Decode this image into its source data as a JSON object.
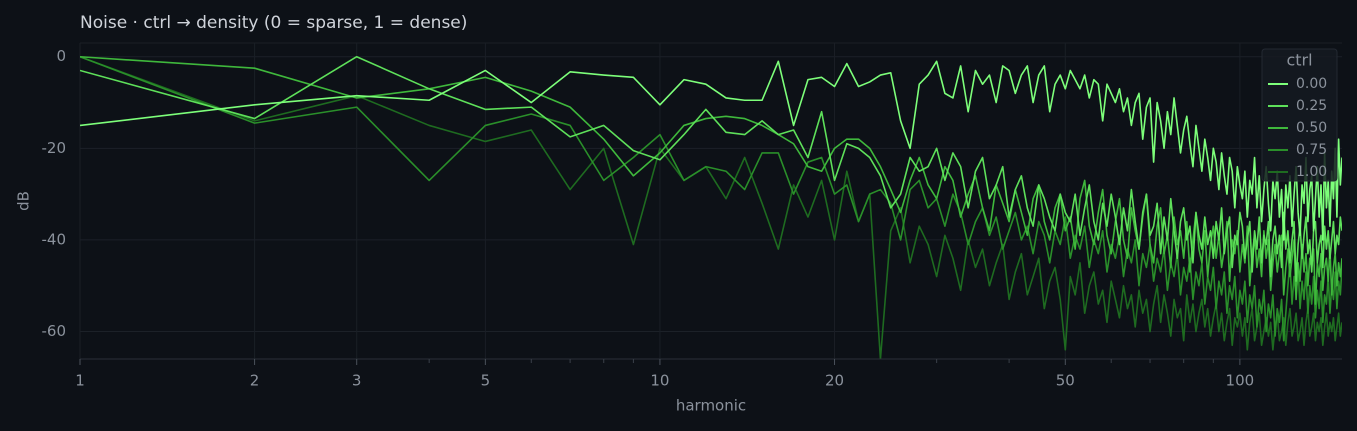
{
  "chart_data": {
    "type": "line",
    "title": "Noise  ·  ctrl → density (0 = sparse, 1 = dense)",
    "xlabel": "harmonic",
    "ylabel": "dB",
    "xscale": "log",
    "grid": true,
    "legend_title": "ctrl",
    "legend_position": "upper-right",
    "xlim": [
      1,
      150
    ],
    "ylim": [
      -66,
      3
    ],
    "xticks": [
      1,
      2,
      3,
      5,
      10,
      20,
      50,
      100
    ],
    "xminorticks": [
      4,
      6,
      7,
      8,
      9,
      30,
      40,
      60,
      70,
      80,
      90
    ],
    "yticks": [
      -60,
      -40,
      -20,
      0
    ],
    "x": [
      1,
      2,
      3,
      4,
      5,
      6,
      7,
      8,
      9,
      10,
      11,
      12,
      13,
      14,
      15,
      16,
      17,
      18,
      19,
      20,
      21,
      22,
      23,
      24,
      25,
      26,
      27,
      28,
      29,
      30,
      31,
      32,
      33,
      34,
      35,
      36,
      37,
      38,
      39,
      40,
      41,
      42,
      43,
      44,
      45,
      46,
      47,
      48,
      49,
      50,
      51,
      52,
      53,
      54,
      55,
      56,
      57,
      58,
      59,
      60,
      61,
      62,
      63,
      64,
      65,
      66,
      67,
      68,
      69,
      70,
      71,
      72,
      73,
      74,
      75,
      76,
      77,
      78,
      79,
      80,
      81,
      82,
      83,
      84,
      85,
      86,
      87,
      88,
      89,
      90,
      91,
      92,
      93,
      94,
      95,
      96,
      97,
      98,
      99,
      100,
      101,
      102,
      103,
      104,
      105,
      106,
      107,
      108,
      109,
      110,
      111,
      112,
      113,
      114,
      115,
      116,
      117,
      118,
      119,
      120,
      121,
      122,
      123,
      124,
      125,
      126,
      127,
      128,
      129,
      130,
      131,
      132,
      133,
      134,
      135,
      136,
      137,
      138,
      139,
      140,
      141,
      142,
      143,
      144,
      145,
      146,
      147,
      148,
      149,
      150
    ],
    "series": [
      {
        "name": "0.00",
        "color": "#7dff7a",
        "values": [
          -15,
          -10.5,
          -8.5,
          -9.5,
          -3,
          -10,
          -3.3,
          -4,
          -4.5,
          -10.5,
          -5,
          -6,
          -9,
          -9.5,
          -9.5,
          -1,
          -15,
          -5,
          -4.5,
          -6.5,
          -1.5,
          -6.5,
          -5.5,
          -4,
          -3.5,
          -14,
          -20,
          -6,
          -4,
          -1,
          -8,
          -9,
          -2,
          -12,
          -3,
          -6,
          -4,
          -10,
          -2,
          -3,
          -8,
          -4,
          -2,
          -10,
          -4,
          -2,
          -12,
          -6,
          -4,
          -7,
          -3,
          -5,
          -7,
          -4,
          -9,
          -5,
          -6,
          -14,
          -6,
          -8,
          -10,
          -7,
          -12,
          -9,
          -15,
          -10,
          -8,
          -18,
          -11,
          -9,
          -23,
          -10,
          -14,
          -20,
          -12,
          -17,
          -9,
          -15,
          -21,
          -16,
          -13,
          -19,
          -24,
          -15,
          -20,
          -25,
          -18,
          -22,
          -27,
          -20,
          -23,
          -29,
          -21,
          -26,
          -30,
          -22,
          -25,
          -33,
          -24,
          -28,
          -31,
          -25,
          -35,
          -27,
          -30,
          -22,
          -33,
          -26,
          -36,
          -29,
          -24,
          -32,
          -38,
          -27,
          -31,
          -25,
          -35,
          -29,
          -40,
          -28,
          -33,
          -26,
          -37,
          -30,
          -24,
          -34,
          -39,
          -28,
          -32,
          -22,
          -36,
          -29,
          -26,
          -38,
          -31,
          -24,
          -35,
          -28,
          -40,
          -21,
          -33,
          -27,
          -37,
          -25,
          -31,
          -20,
          -35,
          -18,
          -28,
          -22
        ]
      },
      {
        "name": "0.25",
        "color": "#5ee05a",
        "values": [
          -3,
          -13.5,
          0,
          -7,
          -11.5,
          -11,
          -17.5,
          -15,
          -20.5,
          -22.5,
          -17,
          -11.5,
          -16.5,
          -17,
          -14,
          -17,
          -16,
          -22,
          -12,
          -27,
          -19,
          -20,
          -22,
          -26,
          -33,
          -30,
          -22,
          -25,
          -24,
          -20,
          -27,
          -21,
          -24,
          -33,
          -25,
          -22,
          -31,
          -28,
          -24,
          -35,
          -29,
          -26,
          -33,
          -37,
          -28,
          -31,
          -35,
          -38,
          -30,
          -34,
          -36,
          -30,
          -39,
          -33,
          -28,
          -36,
          -40,
          -32,
          -37,
          -30,
          -35,
          -41,
          -33,
          -38,
          -29,
          -36,
          -42,
          -34,
          -30,
          -39,
          -37,
          -32,
          -43,
          -35,
          -40,
          -31,
          -38,
          -44,
          -36,
          -33,
          -40,
          -37,
          -45,
          -34,
          -39,
          -42,
          -35,
          -41,
          -38,
          -44,
          -36,
          -40,
          -33,
          -43,
          -38,
          -35,
          -46,
          -39,
          -41,
          -34,
          -37,
          -44,
          -40,
          -36,
          -47,
          -38,
          -42,
          -35,
          -45,
          -39,
          -41,
          -36,
          -48,
          -40,
          -37,
          -43,
          -39,
          -46,
          -34,
          -42,
          -38,
          -45,
          -40,
          -36,
          -49,
          -41,
          -37,
          -44,
          -39,
          -35,
          -43,
          -40,
          -47,
          -38,
          -36,
          -45,
          -41,
          -39,
          -46,
          -37,
          -42,
          -38,
          -44,
          -40,
          -36,
          -43,
          -39,
          -41,
          -35,
          -38
        ]
      },
      {
        "name": "0.50",
        "color": "#3fb83c",
        "values": [
          0,
          -2.5,
          -9,
          -7,
          -4.5,
          -7.5,
          -11,
          -18,
          -26,
          -21,
          -15,
          -13.5,
          -13,
          -13.5,
          -15,
          -17,
          -19,
          -24,
          -25,
          -20,
          -18,
          -18,
          -20,
          -24,
          -29,
          -34,
          -27,
          -22,
          -28,
          -31,
          -24,
          -27,
          -35,
          -30,
          -26,
          -33,
          -38,
          -28,
          -32,
          -36,
          -29,
          -34,
          -39,
          -31,
          -28,
          -36,
          -40,
          -33,
          -30,
          -38,
          -35,
          -42,
          -31,
          -27,
          -37,
          -41,
          -34,
          -29,
          -39,
          -43,
          -36,
          -31,
          -40,
          -44,
          -33,
          -38,
          -42,
          -35,
          -30,
          -41,
          -45,
          -37,
          -33,
          -43,
          -39,
          -46,
          -35,
          -41,
          -38,
          -44,
          -36,
          -47,
          -40,
          -34,
          -42,
          -45,
          -38,
          -48,
          -41,
          -37,
          -44,
          -39,
          -46,
          -42,
          -36,
          -49,
          -40,
          -43,
          -38,
          -47,
          -41,
          -45,
          -37,
          -50,
          -43,
          -39,
          -46,
          -42,
          -48,
          -38,
          -44,
          -40,
          -51,
          -45,
          -41,
          -47,
          -43,
          -39,
          -52,
          -46,
          -42,
          -48,
          -44,
          -40,
          -53,
          -45,
          -49,
          -41,
          -47,
          -43,
          -50,
          -44,
          -46,
          -42,
          -54,
          -45,
          -48,
          -43,
          -51,
          -46,
          -44,
          -49,
          -42,
          -52,
          -46,
          -43,
          -50,
          -45,
          -48,
          -44
        ]
      },
      {
        "name": "0.75",
        "color": "#2a8f2a",
        "values": [
          0,
          -14.5,
          -11,
          -27,
          -15,
          -12.5,
          -15,
          -27,
          -22,
          -17,
          -27,
          -24,
          -25,
          -29,
          -21,
          -21,
          -30,
          -23,
          -22,
          -30,
          -28,
          -36,
          -30,
          -29,
          -32,
          -40,
          -29,
          -27,
          -33,
          -31,
          -37,
          -30,
          -34,
          -41,
          -36,
          -33,
          -39,
          -35,
          -42,
          -38,
          -34,
          -40,
          -37,
          -43,
          -36,
          -39,
          -45,
          -38,
          -41,
          -35,
          -44,
          -39,
          -42,
          -37,
          -46,
          -40,
          -43,
          -38,
          -47,
          -41,
          -44,
          -39,
          -48,
          -42,
          -45,
          -40,
          -50,
          -43,
          -46,
          -41,
          -49,
          -44,
          -47,
          -42,
          -51,
          -45,
          -48,
          -43,
          -52,
          -46,
          -49,
          -44,
          -53,
          -47,
          -50,
          -45,
          -54,
          -48,
          -51,
          -46,
          -55,
          -49,
          -52,
          -47,
          -56,
          -50,
          -53,
          -48,
          -57,
          -51,
          -54,
          -49,
          -58,
          -52,
          -55,
          -50,
          -59,
          -53,
          -56,
          -51,
          -60,
          -54,
          -57,
          -52,
          -61,
          -55,
          -58,
          -53,
          -62,
          -56,
          -50,
          -45,
          -54,
          -48,
          -52,
          -46,
          -55,
          -49,
          -53,
          -47,
          -56,
          -50,
          -54,
          -48,
          -57,
          -51,
          -55,
          -49,
          -58,
          -52,
          -54,
          -48,
          -56,
          -50,
          -53,
          -47,
          -55,
          -49,
          -52,
          -46
        ]
      },
      {
        "name": "1.00",
        "color": "#1e6b20",
        "values": [
          0,
          -14,
          -8.5,
          -15,
          -18.5,
          -16,
          -29,
          -20,
          -41,
          -20,
          -27,
          -24,
          -31,
          -22,
          -32,
          -42,
          -28,
          -35,
          -27,
          -40,
          -25,
          -36,
          -30,
          -66,
          -38,
          -33,
          -45,
          -37,
          -41,
          -48,
          -39,
          -44,
          -51,
          -40,
          -46,
          -42,
          -50,
          -45,
          -41,
          -53,
          -47,
          -43,
          -52,
          -48,
          -44,
          -55,
          -49,
          -46,
          -53,
          -64,
          -48,
          -52,
          -45,
          -56,
          -50,
          -47,
          -54,
          -51,
          -58,
          -49,
          -53,
          -57,
          -50,
          -55,
          -52,
          -59,
          -51,
          -56,
          -53,
          -60,
          -54,
          -50,
          -58,
          -52,
          -56,
          -61,
          -53,
          -57,
          -55,
          -62,
          -52,
          -58,
          -54,
          -60,
          -56,
          -53,
          -59,
          -55,
          -61,
          -57,
          -54,
          -60,
          -56,
          -62,
          -58,
          -55,
          -63,
          -57,
          -59,
          -56,
          -61,
          -57,
          -64,
          -58,
          -55,
          -62,
          -59,
          -56,
          -63,
          -60,
          -57,
          -61,
          -58,
          -64,
          -59,
          -56,
          -62,
          -60,
          -57,
          -63,
          -58,
          -55,
          -61,
          -59,
          -56,
          -62,
          -60,
          -57,
          -63,
          -58,
          -55,
          -61,
          -59,
          -56,
          -62,
          -58,
          -60,
          -57,
          -63,
          -59,
          -56,
          -61,
          -58,
          -60,
          -57,
          -62,
          -59,
          -56,
          -61,
          -58
        ]
      }
    ]
  }
}
